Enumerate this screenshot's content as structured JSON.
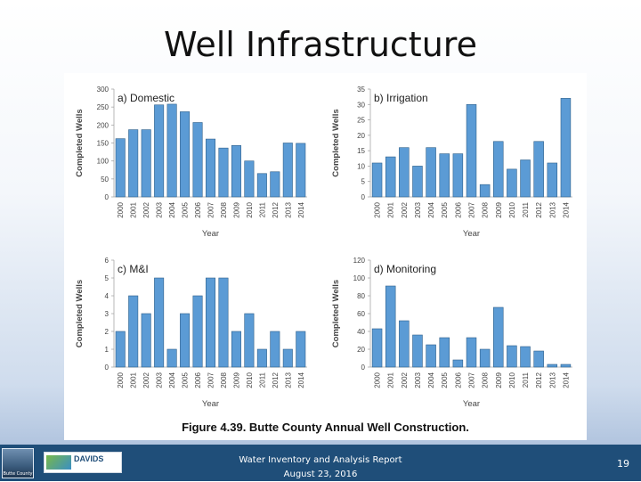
{
  "slide": {
    "title": "Well Infrastructure",
    "caption": "Figure 4.39.  Butte County Annual Well Construction.",
    "footer_line1": "Water Inventory and Analysis Report",
    "footer_line2": "August 23, 2016",
    "page_number": "19",
    "logo_left_text": "Butte County",
    "logo_right_text": "DAVIDS"
  },
  "colors": {
    "bar": "#5b9bd5",
    "footer": "#1f4e79"
  },
  "chart_data": [
    {
      "type": "bar",
      "title": "a) Domestic",
      "xlabel": "Year",
      "ylabel": "Completed Wells",
      "ylim": [
        0,
        300
      ],
      "yticks": [
        0,
        50,
        100,
        150,
        200,
        250,
        300
      ],
      "categories": [
        "2000",
        "2001",
        "2002",
        "2003",
        "2004",
        "2005",
        "2006",
        "2007",
        "2008",
        "2009",
        "2010",
        "2011",
        "2012",
        "2013",
        "2014"
      ],
      "values": [
        162,
        187,
        187,
        256,
        258,
        237,
        207,
        161,
        136,
        143,
        100,
        65,
        70,
        150,
        149
      ]
    },
    {
      "type": "bar",
      "title": "b) Irrigation",
      "xlabel": "Year",
      "ylabel": "Completed Wells",
      "ylim": [
        0,
        35
      ],
      "yticks": [
        0,
        5,
        10,
        15,
        20,
        25,
        30,
        35
      ],
      "categories": [
        "2000",
        "2001",
        "2002",
        "2003",
        "2004",
        "2005",
        "2006",
        "2007",
        "2008",
        "2009",
        "2010",
        "2011",
        "2012",
        "2013",
        "2014"
      ],
      "values": [
        11,
        13,
        16,
        10,
        16,
        14,
        14,
        30,
        4,
        18,
        9,
        12,
        18,
        11,
        32
      ]
    },
    {
      "type": "bar",
      "title": "c) M&I",
      "xlabel": "Year",
      "ylabel": "Completed Wells",
      "ylim": [
        0,
        6
      ],
      "yticks": [
        0,
        1,
        2,
        3,
        4,
        5,
        6
      ],
      "categories": [
        "2000",
        "2001",
        "2002",
        "2003",
        "2004",
        "2005",
        "2006",
        "2007",
        "2008",
        "2009",
        "2010",
        "2011",
        "2012",
        "2013",
        "2014"
      ],
      "values": [
        2,
        4,
        3,
        5,
        1,
        3,
        4,
        5,
        5,
        2,
        3,
        1,
        2,
        1,
        2
      ]
    },
    {
      "type": "bar",
      "title": "d) Monitoring",
      "xlabel": "Year",
      "ylabel": "Completed Wells",
      "ylim": [
        0,
        120
      ],
      "yticks": [
        0,
        20,
        40,
        60,
        80,
        100,
        120
      ],
      "categories": [
        "2000",
        "2001",
        "2002",
        "2003",
        "2004",
        "2005",
        "2006",
        "2007",
        "2008",
        "2009",
        "2010",
        "2011",
        "2012",
        "2013",
        "2014"
      ],
      "values": [
        43,
        91,
        52,
        36,
        25,
        33,
        8,
        33,
        20,
        67,
        24,
        23,
        18,
        3,
        3
      ]
    }
  ]
}
